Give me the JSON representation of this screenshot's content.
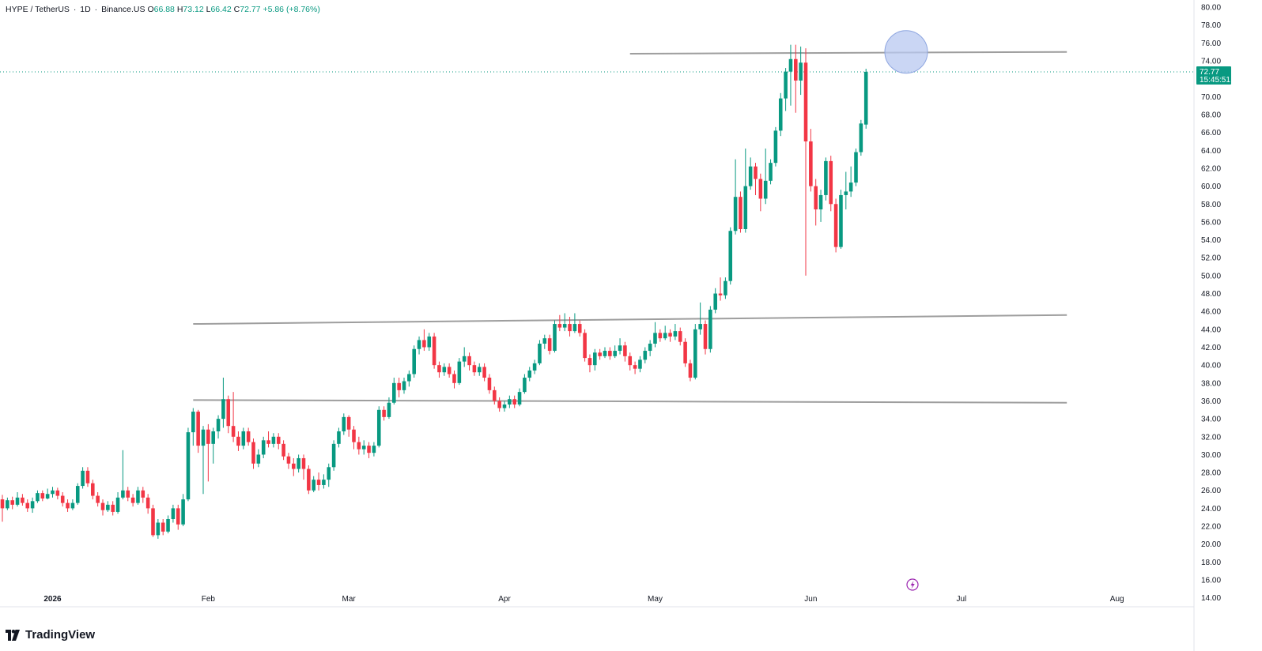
{
  "header": {
    "symbol": "HYPE / TetherUS",
    "interval": "1D",
    "exchange": "Binance.US",
    "open_label": "O",
    "open": "66.88",
    "high_label": "H",
    "high": "73.12",
    "low_label": "L",
    "low": "66.42",
    "close_label": "C",
    "close": "72.77",
    "change": "+5.86 (+8.76%)"
  },
  "price_tag": {
    "price": "72.77",
    "countdown": "15:45:51"
  },
  "brand": {
    "name": "TradingView"
  },
  "colors": {
    "up": "#089981",
    "down": "#f23645",
    "trendline": "#9e9e9e",
    "highlight": "#b8c8f0",
    "background": "#ffffff"
  },
  "chart_data": {
    "type": "candlestick",
    "yaxis": {
      "range": [
        13.0,
        80.8
      ],
      "ticks": [
        "80.00",
        "78.00",
        "76.00",
        "74.00",
        "72.00",
        "70.00",
        "68.00",
        "66.00",
        "64.00",
        "62.00",
        "60.00",
        "58.00",
        "56.00",
        "54.00",
        "52.00",
        "50.00",
        "48.00",
        "46.00",
        "44.00",
        "42.00",
        "40.00",
        "38.00",
        "36.00",
        "34.00",
        "32.00",
        "30.00",
        "28.00",
        "26.00",
        "24.00",
        "22.00",
        "20.00",
        "18.00",
        "16.00",
        "14.00"
      ],
      "side": "right"
    },
    "xaxis": {
      "ticks": [
        {
          "label": "2026",
          "date": "2026-01-01"
        },
        {
          "label": "Feb",
          "date": "2026-02-01"
        },
        {
          "label": "Mar",
          "date": "2026-03-01"
        },
        {
          "label": "Apr",
          "date": "2026-04-01"
        },
        {
          "label": "May",
          "date": "2026-05-01"
        },
        {
          "label": "Jun",
          "date": "2026-06-01"
        },
        {
          "label": "Jul",
          "date": "2026-07-01"
        },
        {
          "label": "Aug",
          "date": "2026-08-01"
        }
      ]
    },
    "start_date": "2025-12-22",
    "candles": [
      [
        25,
        24,
        25.5,
        22.5
      ],
      [
        24,
        24.9,
        25.2,
        23.8
      ],
      [
        24.9,
        24.4,
        25.3,
        23.9
      ],
      [
        24.4,
        25.2,
        25.8,
        24.2
      ],
      [
        25.2,
        24.6,
        25.6,
        24.3
      ],
      [
        24.6,
        24.0,
        25.0,
        23.6
      ],
      [
        24.0,
        24.8,
        25.2,
        23.5
      ],
      [
        24.8,
        25.7,
        26.0,
        24.6
      ],
      [
        25.7,
        25.1,
        26.0,
        24.8
      ],
      [
        25.1,
        25.6,
        26.2,
        25.0
      ],
      [
        25.6,
        26.0,
        26.4,
        25.2
      ],
      [
        26.0,
        25.4,
        26.3,
        25.0
      ],
      [
        25.4,
        24.6,
        25.8,
        24.2
      ],
      [
        24.6,
        24.0,
        25.0,
        23.6
      ],
      [
        24.0,
        24.6,
        25.0,
        23.8
      ],
      [
        24.6,
        26.5,
        26.8,
        24.4
      ],
      [
        26.5,
        28.2,
        28.6,
        26.2
      ],
      [
        28.2,
        26.8,
        28.6,
        26.4
      ],
      [
        26.8,
        25.4,
        27.2,
        25.0
      ],
      [
        25.4,
        24.6,
        25.8,
        24.2
      ],
      [
        24.6,
        23.8,
        25.0,
        23.2
      ],
      [
        23.8,
        24.4,
        24.8,
        23.6
      ],
      [
        24.4,
        23.6,
        24.8,
        23.2
      ],
      [
        23.6,
        25.2,
        25.8,
        23.4
      ],
      [
        25.2,
        26.0,
        30.5,
        25.0
      ],
      [
        26.0,
        25.2,
        26.4,
        24.8
      ],
      [
        25.2,
        24.6,
        25.6,
        24.2
      ],
      [
        24.6,
        26.0,
        26.4,
        24.4
      ],
      [
        26.0,
        25.2,
        26.4,
        24.6
      ],
      [
        25.2,
        24.0,
        25.6,
        23.4
      ],
      [
        24.0,
        21.0,
        24.4,
        20.8
      ],
      [
        21.0,
        22.4,
        22.8,
        20.6
      ],
      [
        22.4,
        21.4,
        22.8,
        21.0
      ],
      [
        21.4,
        22.8,
        23.2,
        21.2
      ],
      [
        22.8,
        24.0,
        24.4,
        22.4
      ],
      [
        24.0,
        22.2,
        24.4,
        21.6
      ],
      [
        22.2,
        25.0,
        25.6,
        22.0
      ],
      [
        25.0,
        32.5,
        33.0,
        24.8
      ],
      [
        32.5,
        34.8,
        35.2,
        31.0
      ],
      [
        34.8,
        31.0,
        35.0,
        30.2
      ],
      [
        31.0,
        32.8,
        33.2,
        25.6
      ],
      [
        32.8,
        31.2,
        33.4,
        27.0
      ],
      [
        31.2,
        32.6,
        33.0,
        29.0
      ],
      [
        32.6,
        34.0,
        34.4,
        31.8
      ],
      [
        34.0,
        36.2,
        38.6,
        33.0
      ],
      [
        36.2,
        33.2,
        36.6,
        32.4
      ],
      [
        33.2,
        32.0,
        37.0,
        31.4
      ],
      [
        32.0,
        31.0,
        32.6,
        30.4
      ],
      [
        31.0,
        32.6,
        33.0,
        30.6
      ],
      [
        32.6,
        31.4,
        33.0,
        31.0
      ],
      [
        31.4,
        29.0,
        31.8,
        28.4
      ],
      [
        29.0,
        30.0,
        30.6,
        28.6
      ],
      [
        30.0,
        31.6,
        32.0,
        29.6
      ],
      [
        31.6,
        31.2,
        32.6,
        30.8
      ],
      [
        31.2,
        32.0,
        32.4,
        30.8
      ],
      [
        32.0,
        31.2,
        32.4,
        30.6
      ],
      [
        31.2,
        29.8,
        31.6,
        29.4
      ],
      [
        29.8,
        29.0,
        30.2,
        28.4
      ],
      [
        29.0,
        28.4,
        29.6,
        27.6
      ],
      [
        28.4,
        29.6,
        30.0,
        28.0
      ],
      [
        29.6,
        28.4,
        30.0,
        27.2
      ],
      [
        28.4,
        26.0,
        28.8,
        25.6
      ],
      [
        26.0,
        27.2,
        27.6,
        25.8
      ],
      [
        27.2,
        26.6,
        28.0,
        26.0
      ],
      [
        26.6,
        27.2,
        27.8,
        26.2
      ],
      [
        27.2,
        28.6,
        29.0,
        26.4
      ],
      [
        28.6,
        31.2,
        31.6,
        28.2
      ],
      [
        31.2,
        32.6,
        33.0,
        30.8
      ],
      [
        32.6,
        34.2,
        34.6,
        32.2
      ],
      [
        34.2,
        32.8,
        34.4,
        32.0
      ],
      [
        32.8,
        31.4,
        33.2,
        30.6
      ],
      [
        31.4,
        30.6,
        32.0,
        30.0
      ],
      [
        30.6,
        31.0,
        31.6,
        30.0
      ],
      [
        31.0,
        30.2,
        31.4,
        29.6
      ],
      [
        30.2,
        31.0,
        31.4,
        29.8
      ],
      [
        31.0,
        35.0,
        35.4,
        30.8
      ],
      [
        35.0,
        34.2,
        35.4,
        33.8
      ],
      [
        34.2,
        35.8,
        36.4,
        34.0
      ],
      [
        35.8,
        38.0,
        38.6,
        35.6
      ],
      [
        38.0,
        37.2,
        38.6,
        36.4
      ],
      [
        37.2,
        38.2,
        38.6,
        36.8
      ],
      [
        38.2,
        39.0,
        39.4,
        37.6
      ],
      [
        39.0,
        41.8,
        42.2,
        38.6
      ],
      [
        41.8,
        42.8,
        43.2,
        41.2
      ],
      [
        42.8,
        42.0,
        44.0,
        41.6
      ],
      [
        42.0,
        43.2,
        43.6,
        41.6
      ],
      [
        43.2,
        40.0,
        43.6,
        39.6
      ],
      [
        40.0,
        39.2,
        40.4,
        38.6
      ],
      [
        39.2,
        39.8,
        40.2,
        38.8
      ],
      [
        39.8,
        39.0,
        40.2,
        38.6
      ],
      [
        39.0,
        38.0,
        39.4,
        37.4
      ],
      [
        38.0,
        40.4,
        40.8,
        37.8
      ],
      [
        40.4,
        41.0,
        42.0,
        39.8
      ],
      [
        41.0,
        40.0,
        41.4,
        39.4
      ],
      [
        40.0,
        39.2,
        40.4,
        38.8
      ],
      [
        39.2,
        39.8,
        40.2,
        38.8
      ],
      [
        39.8,
        38.6,
        40.2,
        38.2
      ],
      [
        38.6,
        37.2,
        39.0,
        36.8
      ],
      [
        37.2,
        36.0,
        37.6,
        35.6
      ],
      [
        36.0,
        35.2,
        36.4,
        34.8
      ],
      [
        35.2,
        35.6,
        36.0,
        34.8
      ],
      [
        35.6,
        36.2,
        36.6,
        35.2
      ],
      [
        36.2,
        35.6,
        36.6,
        35.2
      ],
      [
        35.6,
        37.0,
        37.4,
        35.4
      ],
      [
        37.0,
        38.6,
        39.0,
        36.8
      ],
      [
        38.6,
        39.4,
        39.8,
        38.2
      ],
      [
        39.4,
        40.2,
        40.6,
        39.0
      ],
      [
        40.2,
        42.4,
        42.8,
        40.0
      ],
      [
        42.4,
        43.0,
        43.4,
        41.8
      ],
      [
        43.0,
        41.6,
        43.4,
        41.2
      ],
      [
        41.6,
        44.6,
        45.0,
        41.4
      ],
      [
        44.6,
        44.2,
        45.6,
        43.8
      ],
      [
        44.2,
        44.6,
        45.8,
        43.8
      ],
      [
        44.6,
        43.8,
        45.4,
        43.2
      ],
      [
        43.8,
        44.6,
        45.8,
        43.6
      ],
      [
        44.6,
        43.6,
        45.0,
        43.2
      ],
      [
        43.6,
        40.8,
        44.0,
        40.4
      ],
      [
        40.8,
        40.0,
        41.2,
        39.2
      ],
      [
        40.0,
        41.4,
        41.8,
        39.4
      ],
      [
        41.4,
        41.0,
        41.8,
        40.6
      ],
      [
        41.0,
        41.6,
        42.0,
        40.8
      ],
      [
        41.6,
        41.0,
        42.0,
        40.6
      ],
      [
        41.0,
        41.6,
        42.2,
        40.8
      ],
      [
        41.6,
        42.2,
        43.0,
        41.2
      ],
      [
        42.2,
        41.0,
        42.6,
        40.4
      ],
      [
        41.0,
        40.0,
        41.4,
        39.4
      ],
      [
        40.0,
        39.6,
        40.4,
        39.0
      ],
      [
        39.6,
        40.6,
        41.0,
        39.2
      ],
      [
        40.6,
        41.6,
        42.0,
        40.2
      ],
      [
        41.6,
        42.4,
        42.8,
        41.0
      ],
      [
        42.4,
        43.6,
        44.8,
        42.0
      ],
      [
        43.6,
        43.0,
        44.0,
        42.6
      ],
      [
        43.0,
        43.6,
        44.4,
        42.8
      ],
      [
        43.6,
        43.2,
        44.0,
        42.6
      ],
      [
        43.2,
        43.8,
        44.6,
        42.8
      ],
      [
        43.8,
        42.6,
        44.2,
        42.2
      ],
      [
        42.6,
        40.2,
        43.0,
        39.8
      ],
      [
        40.2,
        38.6,
        40.6,
        38.2
      ],
      [
        38.6,
        44.0,
        44.6,
        38.4
      ],
      [
        44.0,
        44.6,
        47.0,
        43.4
      ],
      [
        44.6,
        41.8,
        45.0,
        41.2
      ],
      [
        41.8,
        46.2,
        46.6,
        41.4
      ],
      [
        46.2,
        48.0,
        48.6,
        45.8
      ],
      [
        48.0,
        47.8,
        49.8,
        47.2
      ],
      [
        47.8,
        49.4,
        49.8,
        47.4
      ],
      [
        49.4,
        55.0,
        55.4,
        49.0
      ],
      [
        55.0,
        58.8,
        63.0,
        54.6
      ],
      [
        58.8,
        55.2,
        59.4,
        54.8
      ],
      [
        55.2,
        60.0,
        64.2,
        54.8
      ],
      [
        60.0,
        62.2,
        63.2,
        59.6
      ],
      [
        62.2,
        60.8,
        62.6,
        59.0
      ],
      [
        60.8,
        58.6,
        61.4,
        57.2
      ],
      [
        58.6,
        60.6,
        64.2,
        58.0
      ],
      [
        60.6,
        62.6,
        63.0,
        60.2
      ],
      [
        62.6,
        66.2,
        66.6,
        62.2
      ],
      [
        66.2,
        69.8,
        70.4,
        65.6
      ],
      [
        69.8,
        72.8,
        73.2,
        68.4
      ],
      [
        72.8,
        74.2,
        75.8,
        69.0
      ],
      [
        74.2,
        71.8,
        75.8,
        68.2
      ],
      [
        71.8,
        73.8,
        75.6,
        70.2
      ],
      [
        73.8,
        65.0,
        75.4,
        50.0
      ],
      [
        65.0,
        60.0,
        66.4,
        59.4
      ],
      [
        60.0,
        57.4,
        60.8,
        55.6
      ],
      [
        57.4,
        59.0,
        59.6,
        56.0
      ],
      [
        59.0,
        62.8,
        63.2,
        58.4
      ],
      [
        62.8,
        58.0,
        63.4,
        57.2
      ],
      [
        58.0,
        53.2,
        58.6,
        52.6
      ],
      [
        53.2,
        59.0,
        59.6,
        53.0
      ],
      [
        59.0,
        59.4,
        61.6,
        57.4
      ],
      [
        59.4,
        60.4,
        62.2,
        58.8
      ],
      [
        60.4,
        63.8,
        64.2,
        60.0
      ],
      [
        63.8,
        67.0,
        67.4,
        63.4
      ],
      [
        66.88,
        72.77,
        73.12,
        66.42
      ]
    ],
    "trendlines": [
      {
        "from": {
          "day": 125,
          "price": 74.8
        },
        "to": {
          "day": 212,
          "price": 75.0
        }
      },
      {
        "from": {
          "day": 38,
          "price": 44.6
        },
        "to": {
          "day": 212,
          "price": 45.6
        }
      },
      {
        "from": {
          "day": 38,
          "price": 36.1
        },
        "to": {
          "day": 212,
          "price": 35.8
        }
      }
    ],
    "highlight": {
      "day": 180,
      "price": 75.0
    }
  }
}
